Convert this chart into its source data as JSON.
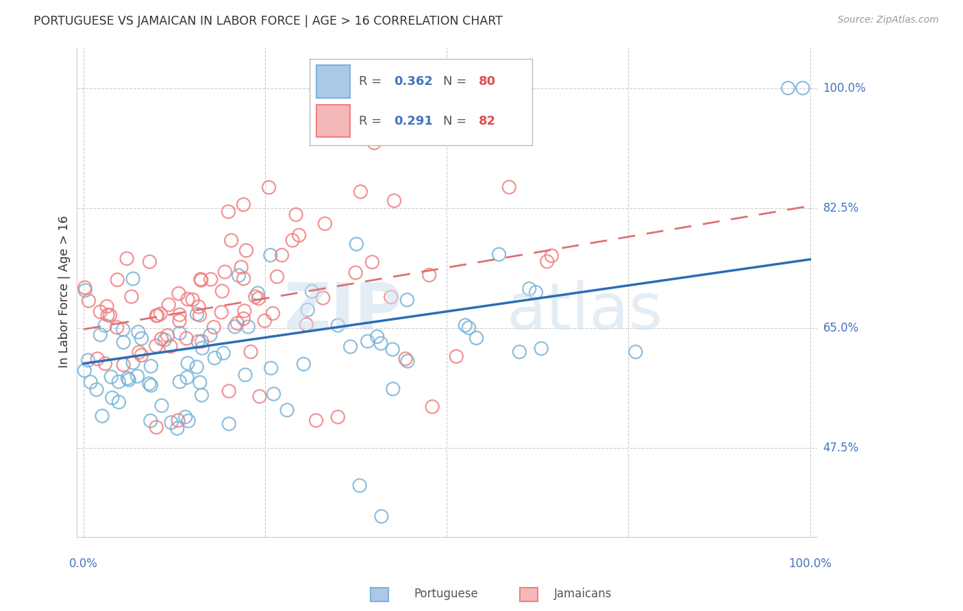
{
  "title": "PORTUGUESE VS JAMAICAN IN LABOR FORCE | AGE > 16 CORRELATION CHART",
  "source": "Source: ZipAtlas.com",
  "ylabel": "In Labor Force | Age > 16",
  "ytick_labels": [
    "100.0%",
    "82.5%",
    "65.0%",
    "47.5%"
  ],
  "ytick_values": [
    1.0,
    0.825,
    0.65,
    0.475
  ],
  "portuguese_color": "#7ab3d9",
  "jamaican_color": "#f08080",
  "regression_blue": [
    0.0,
    0.598,
    1.0,
    0.75
  ],
  "regression_pink": [
    0.0,
    0.648,
    1.0,
    0.828
  ],
  "watermark_zip": "ZIP",
  "watermark_atlas": "atlas",
  "legend_r1": "0.362",
  "legend_n1": "80",
  "legend_r2": "0.291",
  "legend_n2": "82",
  "bottom_label1": "Portuguese",
  "bottom_label2": "Jamaicans",
  "color_r": "#4472c4",
  "color_n": "#e05050"
}
